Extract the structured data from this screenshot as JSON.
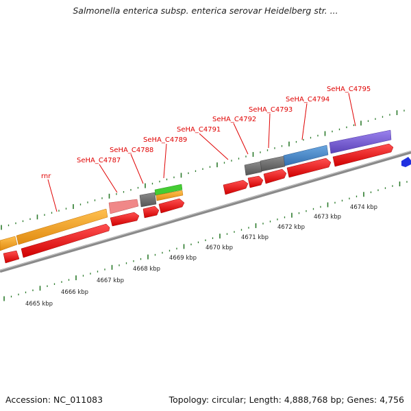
{
  "title": "Salmonella enterica subsp. enterica serovar Heidelberg str. ...",
  "footer": {
    "accession": "Accession: NC_011083",
    "summary": "Topology: circular; Length: 4,888,768 bp; Genes: 4,756"
  },
  "colors": {
    "backbone": "#8a8a8a",
    "tick": "#2a7a2a",
    "label": "#e00000",
    "gene_red": "#f20c0c",
    "rRNA_orange": "#f0a020",
    "pink": "#f08888",
    "gray": "#6e6e6e",
    "green": "#44cc33",
    "steelblue": "#4a88c8",
    "purple": "#7a60d0",
    "blue": "#2030e0"
  },
  "scale_labels": [
    "4665 kbp",
    "4666 kbp",
    "4667 kbp",
    "4668 kbp",
    "4669 kbp",
    "4670 kbp",
    "4671 kbp",
    "4672 kbp",
    "4673 kbp",
    "4674 kbp"
  ],
  "gene_labels": [
    "rnr",
    "SeHA_C4787",
    "SeHA_C4788",
    "SeHA_C4789",
    "SeHA_C4791",
    "SeHA_C4792",
    "SeHA_C4793",
    "SeHA_C4794",
    "SeHA_C4795"
  ]
}
